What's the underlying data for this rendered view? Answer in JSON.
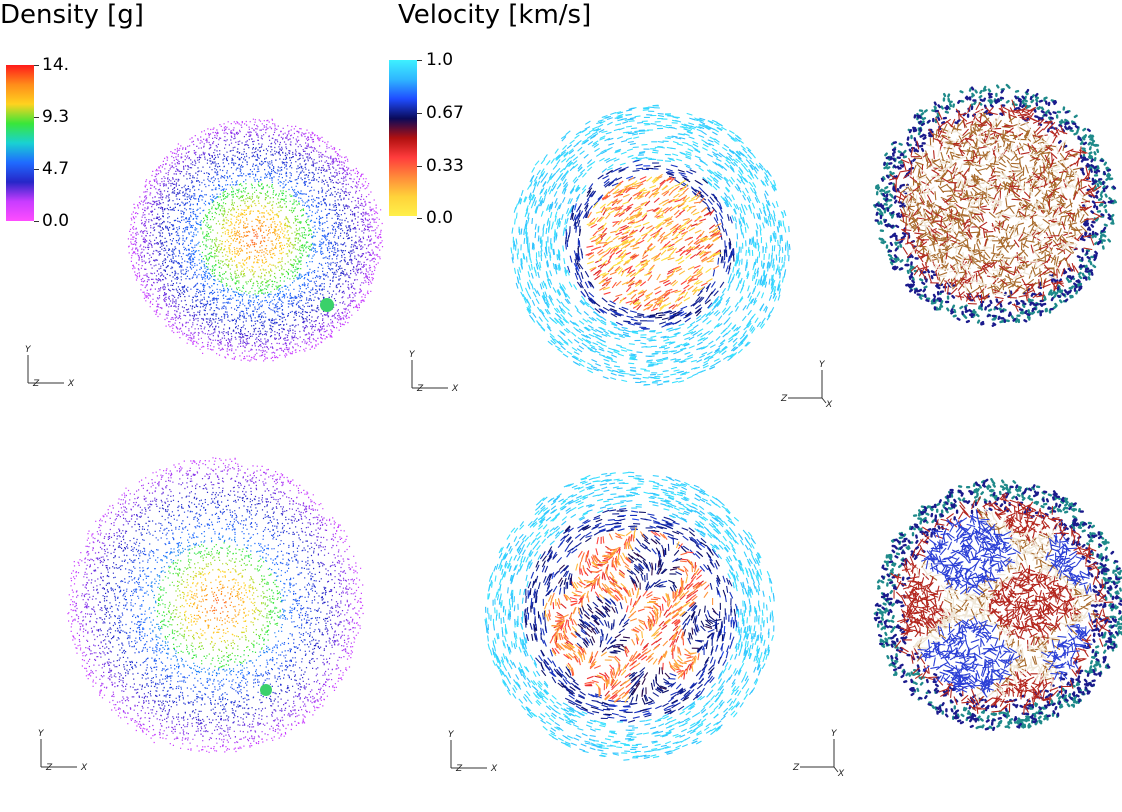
{
  "density": {
    "title": "Density [g]",
    "colorbar_ticks": [
      "14.",
      "9.3",
      "4.7",
      "0.0"
    ],
    "colormap": [
      "#ff1a1a",
      "#ff8c1a",
      "#ffd21f",
      "#39e639",
      "#19d2d2",
      "#1f6bff",
      "#2626c8",
      "#c83cff",
      "#ff4dff"
    ]
  },
  "velocity": {
    "title": "Velocity [km/s]",
    "colorbar_ticks": [
      "1.0",
      "0.67",
      "0.33",
      "0.0"
    ],
    "colormap": [
      "#3ef0ff",
      "#2fb6ff",
      "#1f4cff",
      "#0a0a5a",
      "#b01010",
      "#ff3c3c",
      "#ff8a3a",
      "#ffd23a",
      "#fff04a"
    ]
  },
  "axes_labels": {
    "y": "Y",
    "x": "X",
    "z": "Z"
  },
  "panels": [
    {
      "id": "density-top",
      "field": "density"
    },
    {
      "id": "velocity-top",
      "field": "velocity"
    },
    {
      "id": "velocity3d-top",
      "field": "velocity"
    },
    {
      "id": "density-bottom",
      "field": "density"
    },
    {
      "id": "velocity-bottom",
      "field": "velocity"
    },
    {
      "id": "velocity3d-bottom",
      "field": "velocity"
    }
  ]
}
